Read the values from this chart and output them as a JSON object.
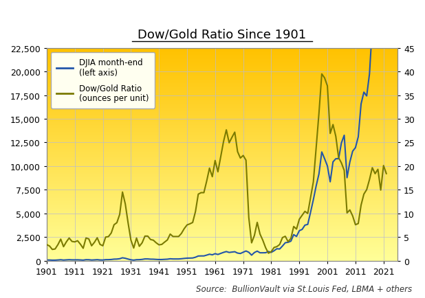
{
  "title": "Dow/Gold Ratio Since 1901",
  "source_text": "Source:  BullionVault via St.Louis Fed, LBMA + others",
  "left_label": "DJIA month-end\n(left axis)",
  "right_label": "Dow/Gold Ratio\n(ounces per unit)",
  "left_ylim": [
    0,
    22500
  ],
  "right_ylim": [
    0,
    45
  ],
  "left_yticks": [
    0,
    2500,
    5000,
    7500,
    10000,
    12500,
    15000,
    17500,
    20000,
    22500
  ],
  "right_yticks": [
    0,
    5,
    10,
    15,
    20,
    25,
    30,
    35,
    40,
    45
  ],
  "xlim": [
    1901,
    2026
  ],
  "xticks": [
    1901,
    1911,
    1921,
    1931,
    1941,
    1951,
    1961,
    1971,
    1981,
    1991,
    2001,
    2011,
    2021
  ],
  "bg_top_color": "#FFC200",
  "bg_bottom_color": "#FFFF99",
  "djia_color": "#2255AA",
  "ratio_color": "#7A7A00",
  "legend_bg": "#FFFFF0",
  "grid_color": "#BBBBCC",
  "title_fontsize": 13,
  "tick_fontsize": 9,
  "source_fontsize": 8.5,
  "fig_bg_color": "#FFFFFF",
  "djia_years": [
    1901,
    1902,
    1903,
    1904,
    1905,
    1906,
    1907,
    1908,
    1909,
    1910,
    1911,
    1912,
    1913,
    1914,
    1915,
    1916,
    1917,
    1918,
    1919,
    1920,
    1921,
    1922,
    1923,
    1924,
    1925,
    1926,
    1927,
    1928,
    1929,
    1930,
    1931,
    1932,
    1933,
    1934,
    1935,
    1936,
    1937,
    1938,
    1939,
    1940,
    1941,
    1942,
    1943,
    1944,
    1945,
    1946,
    1947,
    1948,
    1949,
    1950,
    1951,
    1952,
    1953,
    1954,
    1955,
    1956,
    1957,
    1958,
    1959,
    1960,
    1961,
    1962,
    1963,
    1964,
    1965,
    1966,
    1967,
    1968,
    1969,
    1970,
    1971,
    1972,
    1973,
    1974,
    1975,
    1976,
    1977,
    1978,
    1979,
    1980,
    1981,
    1982,
    1983,
    1984,
    1985,
    1986,
    1987,
    1988,
    1989,
    1990,
    1991,
    1992,
    1993,
    1994,
    1995,
    1996,
    1997,
    1998,
    1999,
    2000,
    2001,
    2002,
    2003,
    2004,
    2005,
    2006,
    2007,
    2008,
    2009,
    2010,
    2011,
    2012,
    2013,
    2014,
    2015,
    2016,
    2017,
    2018,
    2019,
    2020,
    2021,
    2022
  ],
  "djia_values": [
    70,
    64,
    49,
    51,
    70,
    94,
    61,
    82,
    99,
    84,
    82,
    87,
    72,
    54,
    99,
    95,
    65,
    80,
    100,
    71,
    65,
    103,
    105,
    121,
    157,
    166,
    202,
    300,
    248,
    165,
    90,
    55,
    99,
    105,
    131,
    180,
    180,
    155,
    150,
    131,
    116,
    119,
    136,
    152,
    195,
    177,
    177,
    177,
    200,
    235,
    262,
    270,
    280,
    360,
    488,
    499,
    499,
    584,
    679,
    616,
    735,
    652,
    763,
    874,
    960,
    865,
    905,
    943,
    800,
    753,
    890,
    1020,
    885,
    580,
    858,
    1004,
    831,
    831,
    838,
    964,
    875,
    1046,
    1258,
    1230,
    1547,
    1895,
    1938,
    2061,
    2753,
    2559,
    3169,
    3301,
    3754,
    3834,
    5117,
    6448,
    7908,
    9181,
    11497,
    10788,
    10022,
    8342,
    10452,
    10783,
    10783,
    12463,
    13264,
    8776,
    10428,
    11578,
    11955,
    13104,
    16576,
    17823,
    17425,
    19763,
    24719,
    23327,
    28538,
    26428,
    36338,
    33147
  ],
  "gold_prices": [
    20.67,
    20.67,
    20.67,
    20.67,
    20.67,
    20.67,
    20.67,
    20.67,
    20.67,
    20.67,
    20.67,
    20.67,
    20.67,
    20.67,
    20.67,
    20.67,
    20.67,
    20.67,
    20.67,
    20.67,
    20.67,
    20.67,
    20.67,
    20.67,
    20.67,
    20.67,
    20.67,
    20.67,
    20.67,
    20.67,
    20.67,
    20.67,
    20.67,
    34.69,
    34.69,
    34.69,
    34.69,
    34.69,
    34.69,
    34.69,
    34.69,
    34.69,
    34.69,
    34.69,
    34.69,
    34.69,
    34.69,
    34.69,
    34.69,
    34.69,
    34.69,
    34.69,
    34.69,
    34.69,
    34.69,
    34.69,
    34.69,
    34.69,
    34.69,
    34.69,
    34.69,
    34.69,
    34.69,
    34.69,
    34.69,
    34.69,
    34.69,
    34.69,
    34.69,
    34.69,
    40.0,
    48.0,
    97.0,
    154.0,
    161.0,
    124.0,
    148.0,
    193.0,
    307.0,
    615.0,
    460.0,
    376.0,
    424.0,
    360.0,
    317.0,
    368.0,
    484.0,
    437.0,
    381.0,
    383.0,
    362.0,
    344.0,
    360.0,
    384.0,
    384.0,
    387.0,
    331.0,
    294.0,
    291.0,
    279.0,
    271.0,
    310.0,
    363.0,
    410.0,
    495.0,
    603.0,
    695.0,
    869.0,
    972.0,
    1224.0,
    1574.0,
    1669.0,
    1411.0,
    1266.0,
    1160.0,
    1152.0,
    1257.0,
    1268.0,
    1477.0,
    1770.0,
    1806.0,
    1800.0
  ]
}
